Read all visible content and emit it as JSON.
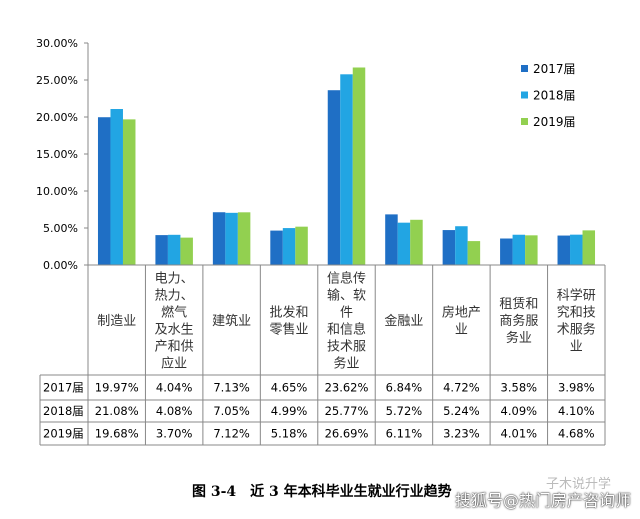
{
  "chart_data": {
    "type": "bar",
    "title": "",
    "xlabel": "",
    "ylabel": "",
    "ylim": [
      0,
      30
    ],
    "yticks": [
      "0.00%",
      "5.00%",
      "10.00%",
      "15.00%",
      "20.00%",
      "25.00%",
      "30.00%"
    ],
    "grid": false,
    "legend_placement": "right",
    "categories": [
      "制造业",
      "电力、\n热力、\n燃气\n及水生\n产和供\n应业",
      "建筑业",
      "批发和\n零售业",
      "信息传\n输、软\n件\n和信息\n技术服\n务业",
      "金融业",
      "房地产\n业",
      "租赁和\n商务服\n务业",
      "科学研\n究和技\n术服务\n业"
    ],
    "series": [
      {
        "name": "2017届",
        "color": "#1f6fc5",
        "values": [
          19.97,
          4.04,
          7.13,
          4.65,
          23.62,
          6.84,
          4.72,
          3.58,
          3.98
        ],
        "labels": [
          "19.97%",
          "4.04%",
          "7.13%",
          "4.65%",
          "23.62%",
          "6.84%",
          "4.72%",
          "3.58%",
          "3.98%"
        ]
      },
      {
        "name": "2018届",
        "color": "#22a5e3",
        "values": [
          21.08,
          4.08,
          7.05,
          4.99,
          25.77,
          5.72,
          5.24,
          4.09,
          4.1
        ],
        "labels": [
          "21.08%",
          "4.08%",
          "7.05%",
          "4.99%",
          "25.77%",
          "5.72%",
          "5.24%",
          "4.09%",
          "4.10%"
        ]
      },
      {
        "name": "2019届",
        "color": "#92d050",
        "values": [
          19.68,
          3.7,
          7.12,
          5.18,
          26.69,
          6.11,
          3.23,
          4.01,
          4.68
        ],
        "labels": [
          "19.68%",
          "3.70%",
          "7.12%",
          "5.18%",
          "26.69%",
          "6.11%",
          "3.23%",
          "4.01%",
          "4.68%"
        ]
      }
    ]
  },
  "caption": "图 3-4　近 3 年本科毕业生就业行业趋势",
  "watermark": {
    "top": "子木说升学",
    "bottom": "搜狐号@热门房产咨询师"
  }
}
